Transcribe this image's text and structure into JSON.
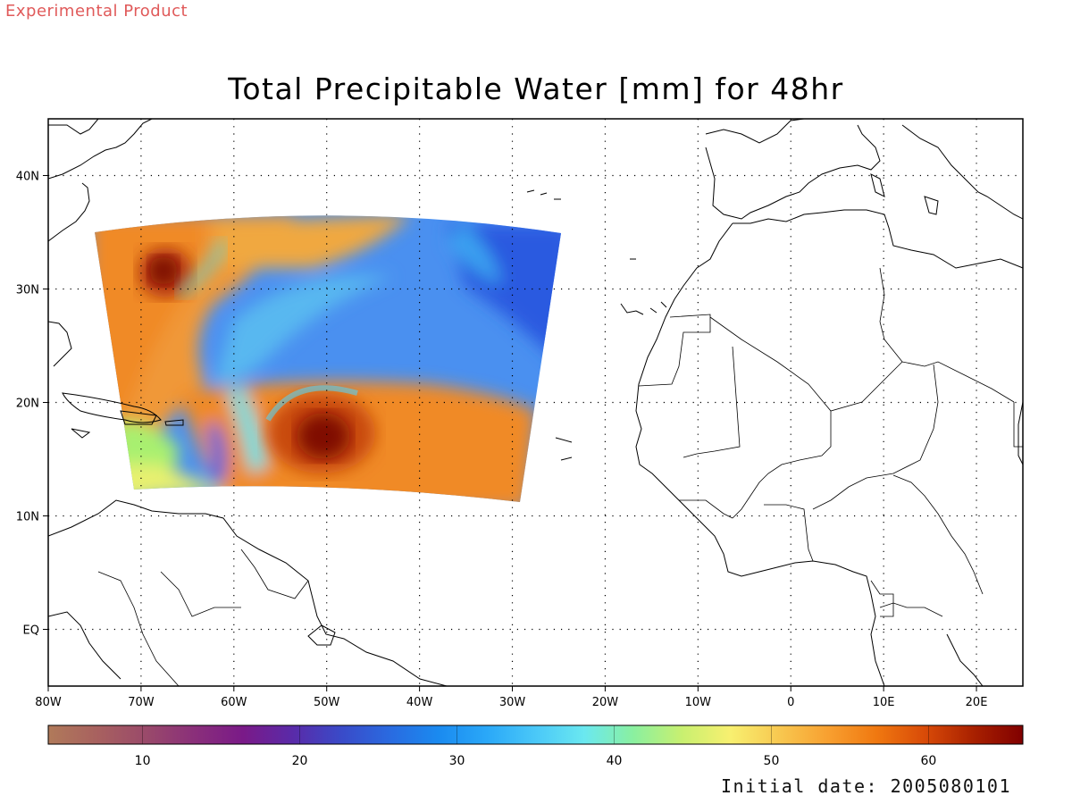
{
  "header": {
    "watermark": "Experimental Product",
    "watermark_color": "#e05a5a",
    "title": "Total Precipitable Water [mm] for 48hr"
  },
  "footer": {
    "initial_date": "Initial date: 2005080101"
  },
  "map": {
    "projection": "latlon",
    "lon_range": [
      -80,
      25
    ],
    "lat_range": [
      -5,
      45
    ],
    "grid": "dotted",
    "lon_tick_labels": [
      {
        "lon": -80,
        "label": "80W"
      },
      {
        "lon": -70,
        "label": "70W"
      },
      {
        "lon": -60,
        "label": "60W"
      },
      {
        "lon": -50,
        "label": "50W"
      },
      {
        "lon": -40,
        "label": "40W"
      },
      {
        "lon": -30,
        "label": "30W"
      },
      {
        "lon": -20,
        "label": "20W"
      },
      {
        "lon": -10,
        "label": "10W"
      },
      {
        "lon": 0,
        "label": "0"
      },
      {
        "lon": 10,
        "label": "10E"
      },
      {
        "lon": 20,
        "label": "20E"
      }
    ],
    "lat_tick_labels": [
      {
        "lat": 0,
        "label": "EQ"
      },
      {
        "lat": 10,
        "label": "10N"
      },
      {
        "lat": 20,
        "label": "20N"
      },
      {
        "lat": 30,
        "label": "30N"
      },
      {
        "lat": 40,
        "label": "40N"
      }
    ],
    "features": [
      {
        "name": "hurricane-vortex-northwest",
        "lon": -67.5,
        "lat": 31.0,
        "value": 65
      },
      {
        "name": "hurricane-vortex-central",
        "lon": -50.5,
        "lat": 16.5,
        "value": 65
      }
    ]
  },
  "colorbar": {
    "min": 4,
    "max": 66,
    "tick_labels": [
      {
        "value": 10,
        "label": "10"
      },
      {
        "value": 20,
        "label": "20"
      },
      {
        "value": 30,
        "label": "30"
      },
      {
        "value": 40,
        "label": "40"
      },
      {
        "value": 50,
        "label": "50"
      },
      {
        "value": 60,
        "label": "60"
      }
    ],
    "colors": [
      "#b07a5a",
      "#a8615f",
      "#9a4a6a",
      "#8a2f7a",
      "#7a1a88",
      "#5a2aa8",
      "#3a4ac8",
      "#2a6ae0",
      "#1a8af0",
      "#2aa8f8",
      "#4ac8f8",
      "#6ae8f0",
      "#8af0a0",
      "#c8f070",
      "#f8f070",
      "#f8c850",
      "#f8a030",
      "#f07810",
      "#d84a08",
      "#a82000",
      "#800000"
    ]
  }
}
